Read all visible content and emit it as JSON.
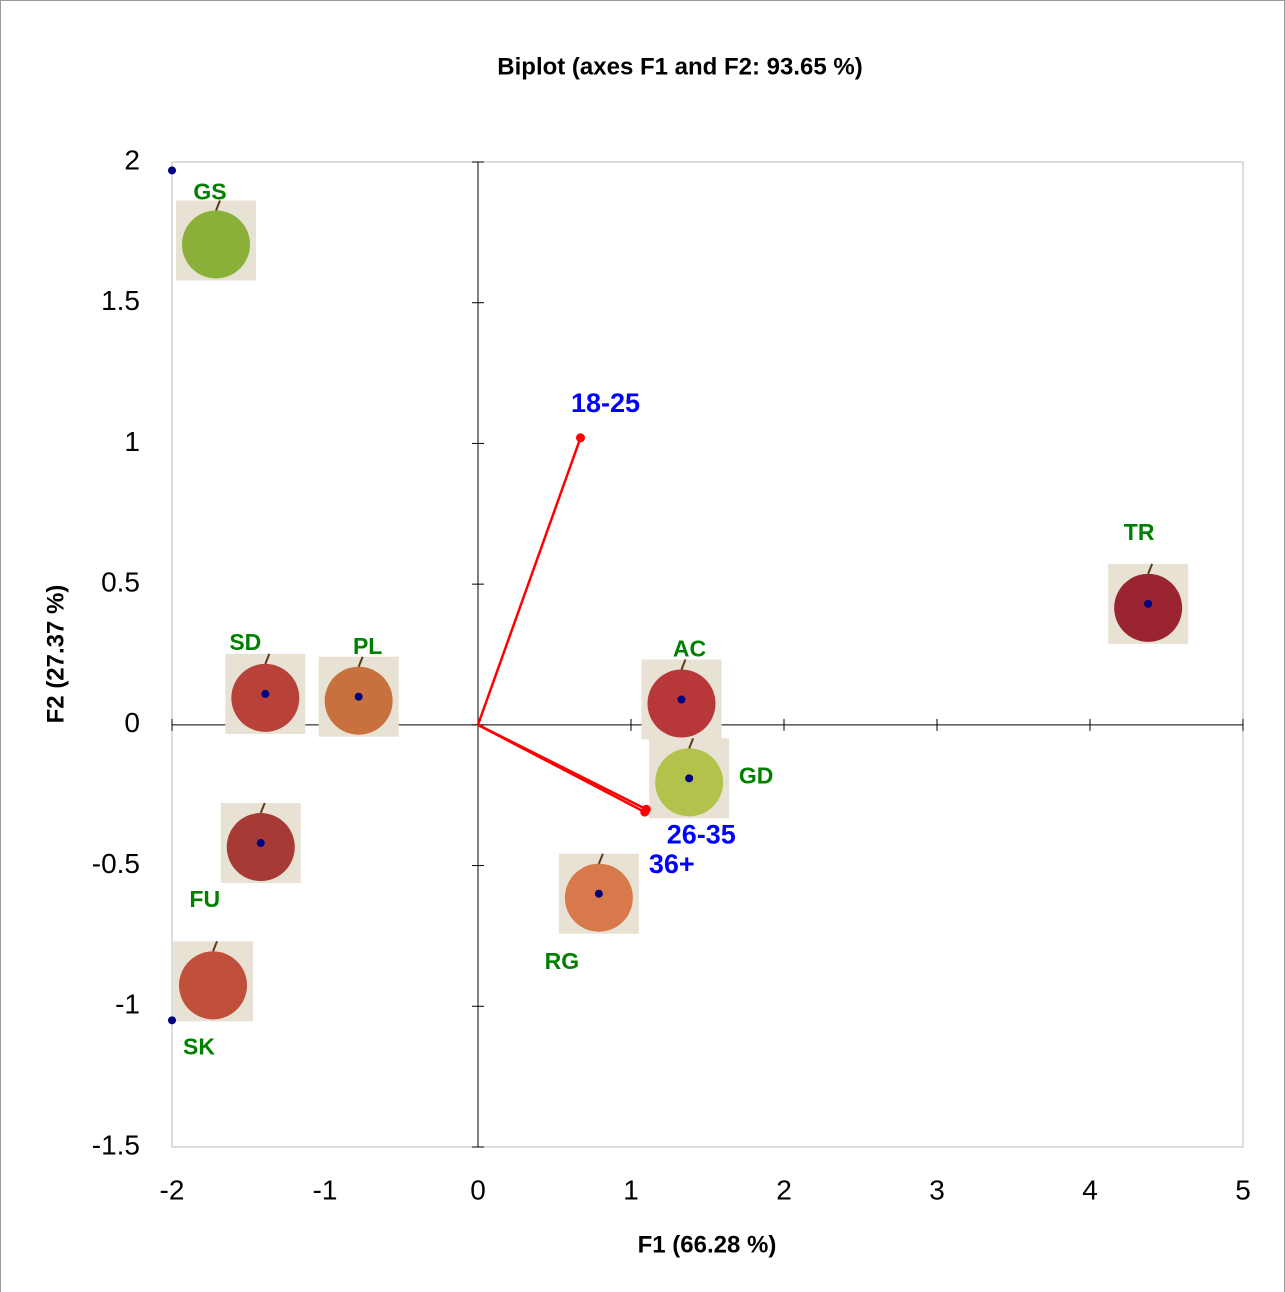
{
  "chart_data": {
    "type": "biplot",
    "title": "Biplot (axes F1 and F2: 93.65 %)",
    "x_label": "F1 (66.28 %)",
    "y_label": "F2 (27.37 %)",
    "xlim": [
      -2,
      5
    ],
    "ylim": [
      -1.5,
      2
    ],
    "xticks": [
      -2,
      -1,
      0,
      1,
      2,
      3,
      4,
      5
    ],
    "yticks": [
      -1.5,
      -1,
      -0.5,
      0,
      0.5,
      1,
      1.5,
      2
    ],
    "grid": false,
    "observations": {
      "labels": [
        "GS",
        "SD",
        "PL",
        "AC",
        "GD",
        "TR",
        "RG",
        "FU",
        "SK"
      ],
      "x": [
        -2,
        -1.39,
        -0.78,
        1.33,
        1.38,
        4.38,
        0.79,
        -1.42,
        -2
      ],
      "y": [
        1.97,
        0.11,
        0.1,
        0.09,
        -0.19,
        0.43,
        -0.6,
        -0.42,
        -1.05
      ],
      "color": "#000080",
      "label_color": "#008000",
      "image_colors": [
        "#8bb03a",
        "#b8423a",
        "#c9703f",
        "#b8383a",
        "#b3c24a",
        "#9a2430",
        "#d8794c",
        "#a83a36",
        "#c0503c"
      ]
    },
    "variables": {
      "labels": [
        "18-25",
        "26-35",
        "36+"
      ],
      "x": [
        0.67,
        1.1,
        1.09
      ],
      "y": [
        1.02,
        -0.3,
        -0.31
      ],
      "color": "#ff0000",
      "label_color": "#0000ff"
    }
  }
}
